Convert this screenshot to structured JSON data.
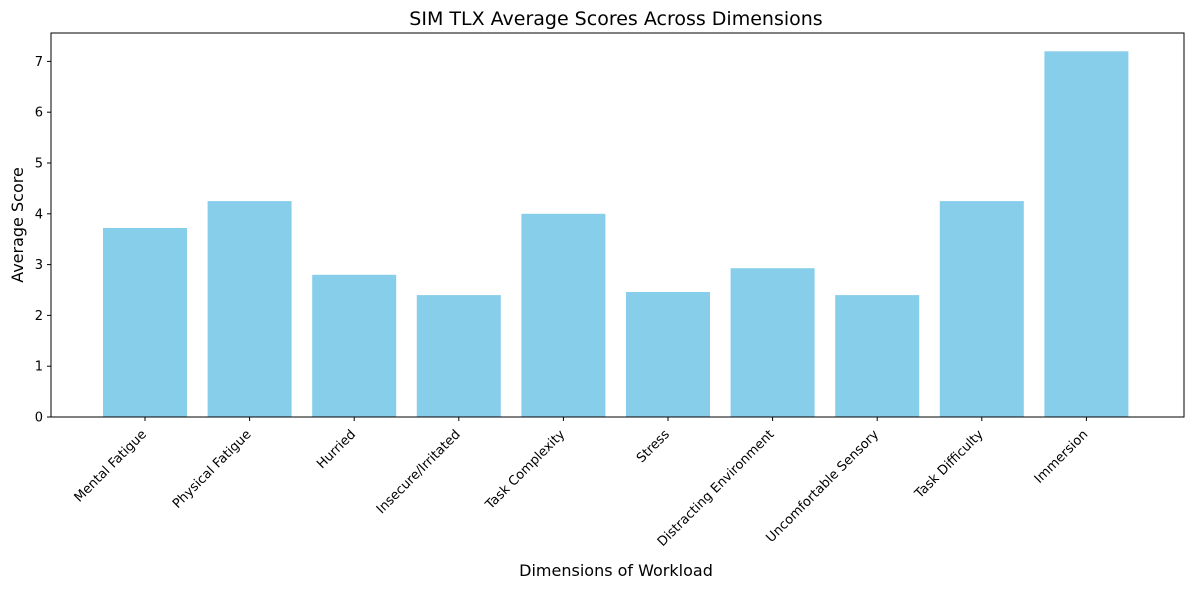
{
  "chart_data": {
    "type": "bar",
    "title": "SIM TLX Average Scores Across Dimensions",
    "xlabel": "Dimensions of Workload",
    "ylabel": "Average Score",
    "categories": [
      "Mental Fatigue",
      "Physical Fatigue",
      "Hurried",
      "Insecure/Irritated",
      "Task Complexity",
      "Stress",
      "Distracting Environment",
      "Uncomfortable Sensory",
      "Task Difficulty",
      "Immersion"
    ],
    "values": [
      3.72,
      4.25,
      2.8,
      2.4,
      4.0,
      2.46,
      2.93,
      2.4,
      4.25,
      7.2
    ],
    "ylim": [
      0,
      7.56
    ],
    "yticks": [
      0,
      1,
      2,
      3,
      4,
      5,
      6,
      7
    ],
    "bar_color": "#87CEEB",
    "grid": false,
    "legend": "none"
  }
}
